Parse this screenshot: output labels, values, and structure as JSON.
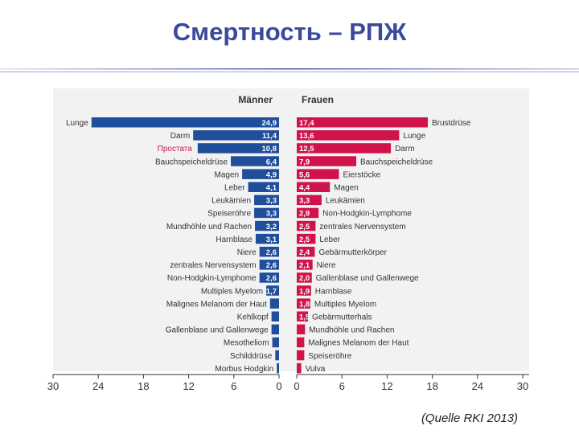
{
  "slide": {
    "title": "Смертность – РПЖ",
    "source": "(Quelle RKI 2013)"
  },
  "colors": {
    "title": "#3a4a9c",
    "men": "#1f4e9a",
    "women": "#d0134b",
    "annotation": "#d0134b",
    "panel": "#f2f2f2"
  },
  "chart_data": {
    "type": "bar",
    "orientation": "horizontal-butterfly",
    "annotation": "Простата",
    "axis_ticks": {
      "men": [
        "30",
        "24",
        "18",
        "12",
        "6",
        "0"
      ],
      "women": [
        "0",
        "6",
        "12",
        "18",
        "24",
        "30"
      ]
    },
    "xlim": [
      0,
      30
    ],
    "grid": false,
    "series": [
      {
        "name": "Männer",
        "categories": [
          "Lunge",
          "Darm",
          "",
          "Bauchspeicheldrüse",
          "Magen",
          "Leber",
          "Leukämien",
          "Speiseröhre",
          "Mundhöhle und Rachen",
          "Harnblase",
          "Niere",
          "zentrales Nervensystem",
          "Non-Hodgkin-Lymphome",
          "Multiples Myelom",
          "Malignes Melanom der Haut",
          "Kehlkopf",
          "Gallenblase und Gallenwege",
          "Mesotheliom",
          "Schilddrüse",
          "Morbus Hodgkin"
        ],
        "values": [
          24.9,
          11.4,
          10.8,
          6.4,
          4.9,
          4.1,
          3.3,
          3.3,
          3.2,
          3.1,
          2.6,
          2.6,
          2.6,
          1.7,
          1.2,
          1.0,
          1.0,
          0.9,
          0.5,
          0.3
        ],
        "labels": [
          "24,9",
          "11,4",
          "10,8",
          "6,4",
          "4,9",
          "4,1",
          "3,3",
          "3,3",
          "3,2",
          "3,1",
          "2,6",
          "2,6",
          "2,6",
          "1,7",
          "",
          "",
          "",
          "",
          "",
          ""
        ]
      },
      {
        "name": "Frauen",
        "categories": [
          "Brustdrüse",
          "Lunge",
          "Darm",
          "Bauchspeicheldrüse",
          "Eierstöcke",
          "Magen",
          "Leukämien",
          "Non-Hodgkin-Lymphome",
          "zentrales Nervensystem",
          "Leber",
          "Gebärmutterkörper",
          "Niere",
          "Gallenblase und Gallenwege",
          "Harnblase",
          "Multiples Myelom",
          "Gebärmutterhals",
          "Mundhöhle und Rachen",
          "Malignes Melanom der Haut",
          "Speiseröhre",
          "Vulva"
        ],
        "values": [
          17.4,
          13.6,
          12.5,
          7.9,
          5.6,
          4.4,
          3.3,
          2.9,
          2.5,
          2.5,
          2.4,
          2.1,
          2.0,
          1.9,
          1.8,
          1.5,
          1.1,
          1.0,
          1.0,
          0.6
        ],
        "labels": [
          "17,4",
          "13,6",
          "12,5",
          "7,9",
          "5,6",
          "4,4",
          "3,3",
          "2,9",
          "2,5",
          "2,5",
          "2,4",
          "2,1",
          "2,0",
          "1,9",
          "1,8",
          "1,5",
          "",
          "",
          "",
          ""
        ]
      }
    ]
  }
}
